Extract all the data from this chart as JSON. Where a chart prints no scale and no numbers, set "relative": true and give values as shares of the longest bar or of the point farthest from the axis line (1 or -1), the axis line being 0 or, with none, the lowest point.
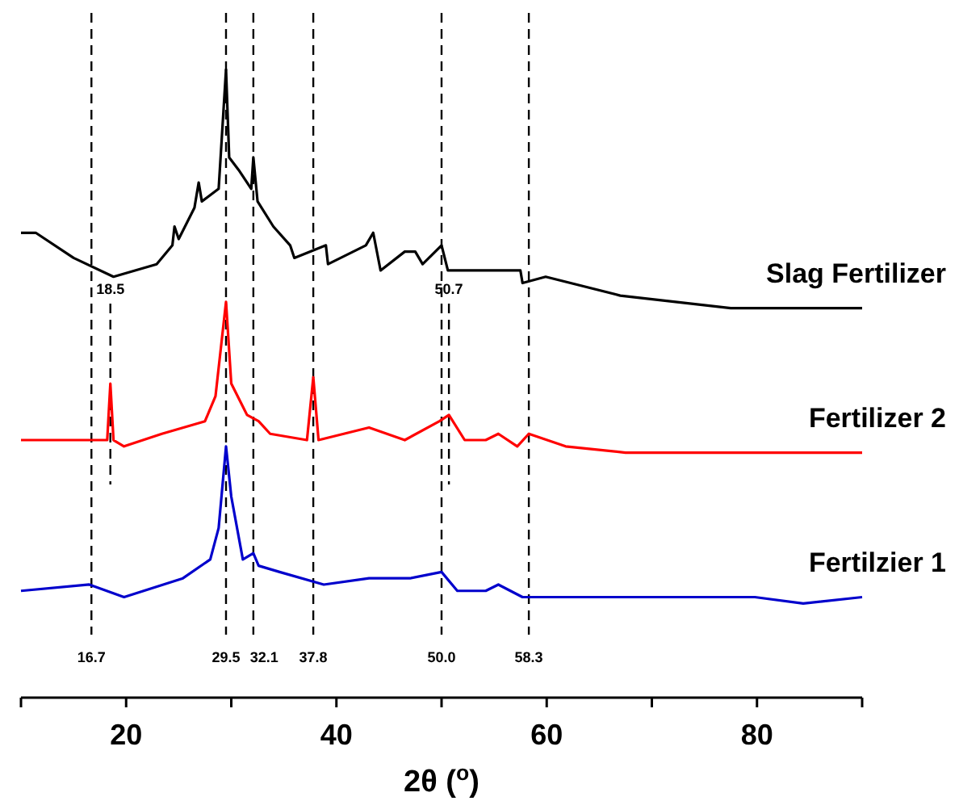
{
  "chart_data": {
    "type": "line",
    "relative": true,
    "xlabel": "2θ ($^{o}$)",
    "xlim": [
      10,
      90
    ],
    "xticks": [
      {
        "value": 10,
        "label": null
      },
      20,
      {
        "value": 30,
        "label": null
      },
      40,
      {
        "value": 50,
        "label": null
      },
      60,
      {
        "value": 70,
        "label": null
      },
      80,
      {
        "value": 90,
        "label": null
      }
    ],
    "legend": false,
    "marker": "none",
    "line_style": "solid",
    "tick_labels": "x",
    "series": [
      {
        "name": "Slag Fertilizer",
        "color": "#000000",
        "x": [
          10,
          11.4,
          15,
          18.8,
          22.9,
          24.4,
          24.6,
          25,
          26.5,
          26.9,
          27.2,
          28.8,
          29.5,
          29.8,
          30.7,
          31.9,
          32.1,
          32.5,
          34,
          35.6,
          36,
          39,
          39.2,
          42.8,
          43.5,
          44.2,
          46.5,
          47.5,
          48.2,
          50,
          50.6,
          53,
          55.2,
          57.5,
          57.7,
          59.9,
          67,
          77.5,
          90
        ],
        "values": [
          0.74,
          0.74,
          0.7,
          0.67,
          0.69,
          0.72,
          0.75,
          0.73,
          0.78,
          0.82,
          0.79,
          0.81,
          1,
          0.86,
          0.84,
          0.81,
          0.86,
          0.79,
          0.75,
          0.72,
          0.7,
          0.72,
          0.69,
          0.72,
          0.74,
          0.68,
          0.71,
          0.71,
          0.69,
          0.72,
          0.68,
          0.68,
          0.68,
          0.68,
          0.66,
          0.67,
          0.64,
          0.62,
          0.62
        ]
      },
      {
        "name": "Fertilizer 2",
        "color": "#ff0000",
        "x": [
          10,
          16.7,
          18.2,
          18.5,
          18.8,
          19.8,
          23.4,
          27.5,
          28.5,
          29.5,
          30,
          31.5,
          32.6,
          33.7,
          37.2,
          37.8,
          38.3,
          43.1,
          46.5,
          49.8,
          50.7,
          52.2,
          54.2,
          55.4,
          57.2,
          58.3,
          61.8,
          67.5,
          79.8,
          83.4,
          90
        ],
        "values": [
          0.41,
          0.41,
          0.41,
          0.5,
          0.41,
          0.4,
          0.42,
          0.44,
          0.48,
          0.63,
          0.5,
          0.45,
          0.44,
          0.42,
          0.41,
          0.51,
          0.41,
          0.43,
          0.41,
          0.44,
          0.45,
          0.41,
          0.41,
          0.42,
          0.4,
          0.42,
          0.4,
          0.39,
          0.39,
          0.39,
          0.39
        ]
      },
      {
        "name": "Fertilzier 1",
        "color": "#0000cc",
        "x": [
          10,
          16.5,
          19.8,
          25.4,
          28,
          28.8,
          29.5,
          30,
          31.1,
          32.1,
          32.6,
          34.6,
          38.8,
          43.1,
          47,
          50,
          51.5,
          54.2,
          55.4,
          57.7,
          67.5,
          79.8,
          84.4,
          90
        ],
        "values": [
          0.17,
          0.18,
          0.16,
          0.19,
          0.22,
          0.27,
          0.4,
          0.32,
          0.22,
          0.23,
          0.21,
          0.2,
          0.18,
          0.19,
          0.19,
          0.2,
          0.17,
          0.17,
          0.18,
          0.16,
          0.16,
          0.16,
          0.15,
          0.16
        ]
      }
    ],
    "ref_lines": [
      {
        "axis": "x",
        "value": 16.7,
        "label": "16.7",
        "line_style": "dashed",
        "color": "#000000"
      },
      {
        "axis": "x",
        "value": 18.5,
        "label": "18.5",
        "line_style": "dashed",
        "color": "#000000"
      },
      {
        "axis": "x",
        "value": 29.5,
        "label": "29.5",
        "line_style": "dashed",
        "color": "#000000"
      },
      {
        "axis": "x",
        "value": 32.1,
        "label": "32.1",
        "line_style": "dashed",
        "color": "#000000"
      },
      {
        "axis": "x",
        "value": 37.8,
        "label": "37.8",
        "line_style": "dashed",
        "color": "#000000"
      },
      {
        "axis": "x",
        "value": 50.0,
        "label": "50.0",
        "line_style": "dashed",
        "color": "#000000"
      },
      {
        "axis": "x",
        "value": 50.7,
        "label": "50.7",
        "line_style": "dashed",
        "color": "#000000"
      },
      {
        "axis": "x",
        "value": 58.3,
        "label": "58.3",
        "line_style": "dashed",
        "color": "#000000"
      }
    ]
  }
}
